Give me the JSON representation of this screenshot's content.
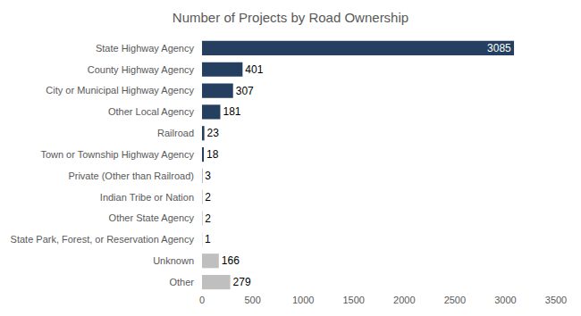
{
  "chart_data": {
    "type": "bar",
    "title": "Number of Projects by Road Ownership",
    "orientation": "horizontal",
    "categories": [
      "State Highway Agency",
      "County Highway Agency",
      "City or Municipal Highway Agency",
      "Other Local Agency",
      "Railroad",
      "Town or Township Highway Agency",
      "Private (Other than Railroad)",
      "Indian Tribe or Nation",
      "Other State Agency",
      "State Park, Forest, or Reservation Agency",
      "Unknown",
      "Other"
    ],
    "values": [
      3085,
      401,
      307,
      181,
      23,
      18,
      3,
      2,
      2,
      1,
      166,
      279
    ],
    "colors": [
      "#243f60",
      "#243f60",
      "#243f60",
      "#243f60",
      "#243f60",
      "#243f60",
      "#243f60",
      "#243f60",
      "#243f60",
      "#243f60",
      "#bfbfbf",
      "#bfbfbf"
    ],
    "xlim": [
      0,
      3500
    ],
    "xticks": [
      0,
      500,
      1000,
      1500,
      2000,
      2500,
      3000,
      3500
    ],
    "grid": false,
    "data_labels": true
  }
}
